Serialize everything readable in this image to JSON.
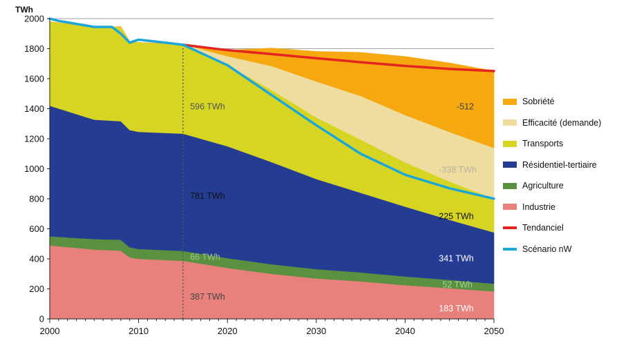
{
  "chart_data": {
    "type": "area",
    "y_unit": "TWh",
    "x": [
      2000,
      2005,
      2008,
      2009,
      2010,
      2015,
      2020,
      2025,
      2030,
      2035,
      2040,
      2045,
      2050
    ],
    "xticks": [
      2000,
      2010,
      2020,
      2030,
      2040,
      2050
    ],
    "ylim": [
      0,
      2000
    ],
    "yticks": [
      0,
      200,
      400,
      600,
      800,
      1000,
      1200,
      1400,
      1600,
      1800,
      2000
    ],
    "xlim": [
      2000,
      2050
    ],
    "grid": true,
    "legend_position": "right",
    "series": [
      {
        "name": "Industrie",
        "color": "#e8807b",
        "values": [
          490,
          462,
          455,
          410,
          400,
          387,
          340,
          300,
          270,
          250,
          225,
          205,
          183
        ]
      },
      {
        "name": "Agriculture",
        "color": "#5a9140",
        "values": [
          60,
          70,
          72,
          68,
          66,
          66,
          65,
          64,
          62,
          60,
          58,
          55,
          52
        ]
      },
      {
        "name": "Résidentiel-tertiaire",
        "color": "#253c93",
        "values": [
          870,
          795,
          790,
          780,
          780,
          781,
          745,
          680,
          600,
          530,
          465,
          400,
          341
        ]
      },
      {
        "name": "Transports",
        "color": "#d6d524",
        "values": [
          560,
          615,
          630,
          590,
          595,
          596,
          540,
          480,
          410,
          355,
          295,
          255,
          225
        ]
      },
      {
        "name": "Efficacité (demande)",
        "color": "#efdc9f",
        "values": [
          0,
          0,
          0,
          0,
          0,
          0,
          60,
          160,
          240,
          290,
          315,
          330,
          338
        ]
      },
      {
        "name": "Sobriété",
        "color": "#f5a810",
        "values": [
          0,
          0,
          0,
          0,
          0,
          0,
          40,
          120,
          200,
          290,
          390,
          460,
          512
        ]
      }
    ],
    "lines": [
      {
        "name": "Tendanciel",
        "color": "#e32420",
        "x": [
          2015,
          2020,
          2025,
          2030,
          2035,
          2040,
          2045,
          2050
        ],
        "values": [
          1826,
          1790,
          1764,
          1736,
          1710,
          1685,
          1665,
          1651
        ]
      },
      {
        "name": "Scénario nW",
        "color": "#1aa7d8",
        "x": [
          2000,
          2001,
          2003,
          2005,
          2007,
          2008,
          2009,
          2010,
          2013,
          2015,
          2020,
          2025,
          2030,
          2035,
          2040,
          2045,
          2050
        ],
        "values": [
          2000,
          1985,
          1965,
          1945,
          1945,
          1900,
          1840,
          1860,
          1840,
          1826,
          1690,
          1490,
          1290,
          1100,
          960,
          870,
          801
        ]
      }
    ],
    "annotations": [
      {
        "text": "596 TWh",
        "x": 2015.8,
        "y": 1395,
        "color": "#555555"
      },
      {
        "text": "781 TWh",
        "x": 2015.8,
        "y": 800,
        "color": "#111111"
      },
      {
        "text": "66 TWh",
        "x": 2015.8,
        "y": 393,
        "color": "#9cc48e"
      },
      {
        "text": "387 TWh",
        "x": 2015.8,
        "y": 128,
        "color": "#444444"
      },
      {
        "text": "-512",
        "x": 2045.8,
        "y": 1395,
        "color": "#444444"
      },
      {
        "text": "-338 TWh",
        "x": 2043.8,
        "y": 975,
        "color": "#b8b49a"
      },
      {
        "text": "225 TWh",
        "x": 2043.8,
        "y": 665,
        "color": "#111111"
      },
      {
        "text": "341 TWh",
        "x": 2043.8,
        "y": 385,
        "color": "#ffffff"
      },
      {
        "text": "52 TWh",
        "x": 2044.2,
        "y": 210,
        "color": "#a8cf95"
      },
      {
        "text": "183 TWh",
        "x": 2043.8,
        "y": 50,
        "color": "#ffffff"
      }
    ],
    "vline_x": 2015
  }
}
